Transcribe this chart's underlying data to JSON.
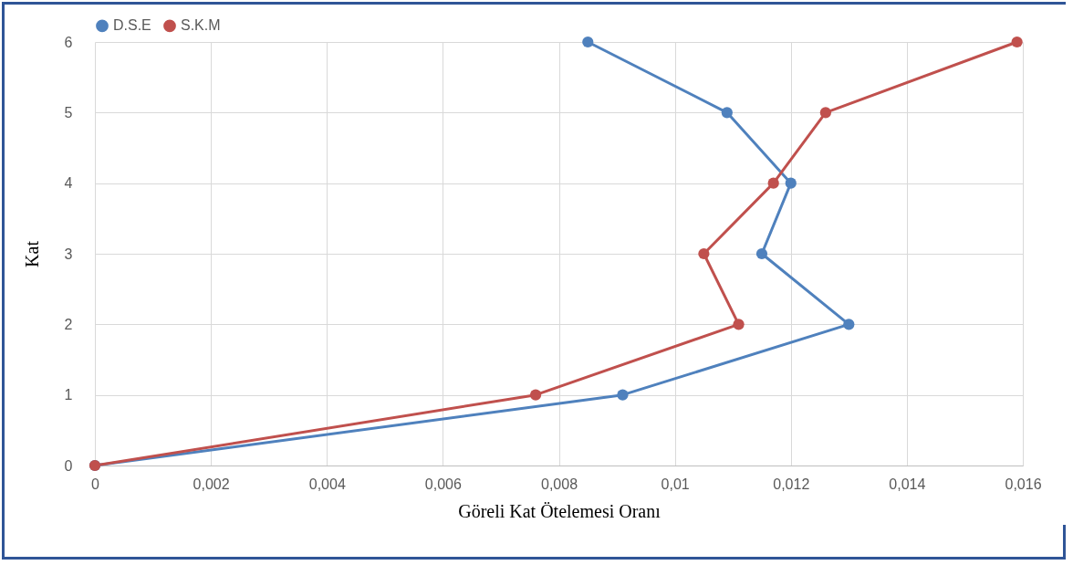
{
  "chart_data": {
    "type": "line",
    "xlabel": "Göreli Kat Ötelemesi Oranı",
    "ylabel": "Kat",
    "series": [
      {
        "name": "D.S.E",
        "color": "#4f81bd",
        "x": [
          0,
          0.0091,
          0.013,
          0.0115,
          0.012,
          0.0109,
          0.0085
        ],
        "values": [
          0,
          1,
          2,
          3,
          4,
          5,
          6
        ]
      },
      {
        "name": "S.K.M",
        "color": "#c0504d",
        "x": [
          0,
          0.0076,
          0.0111,
          0.0105,
          0.0117,
          0.0126,
          0.0159
        ],
        "values": [
          0,
          1,
          2,
          3,
          4,
          5,
          6
        ]
      }
    ],
    "xlim": [
      0,
      0.016
    ],
    "xticks": [
      0,
      {
        "value": 0.002,
        "label": "0,002"
      },
      {
        "value": 0.004,
        "label": "0,004"
      },
      {
        "value": 0.006,
        "label": "0,006"
      },
      {
        "value": 0.008,
        "label": "0,008"
      },
      {
        "value": 0.01,
        "label": "0,01"
      },
      {
        "value": 0.012,
        "label": "0,012"
      },
      {
        "value": 0.014,
        "label": "0,014"
      },
      {
        "value": 0.016,
        "label": "0,016"
      }
    ],
    "ylim": [
      0,
      6
    ],
    "yticks": [
      0,
      1,
      2,
      3,
      4,
      5,
      6
    ],
    "grid": true,
    "legend": "top",
    "marker": "circle",
    "line_style": "solid"
  }
}
